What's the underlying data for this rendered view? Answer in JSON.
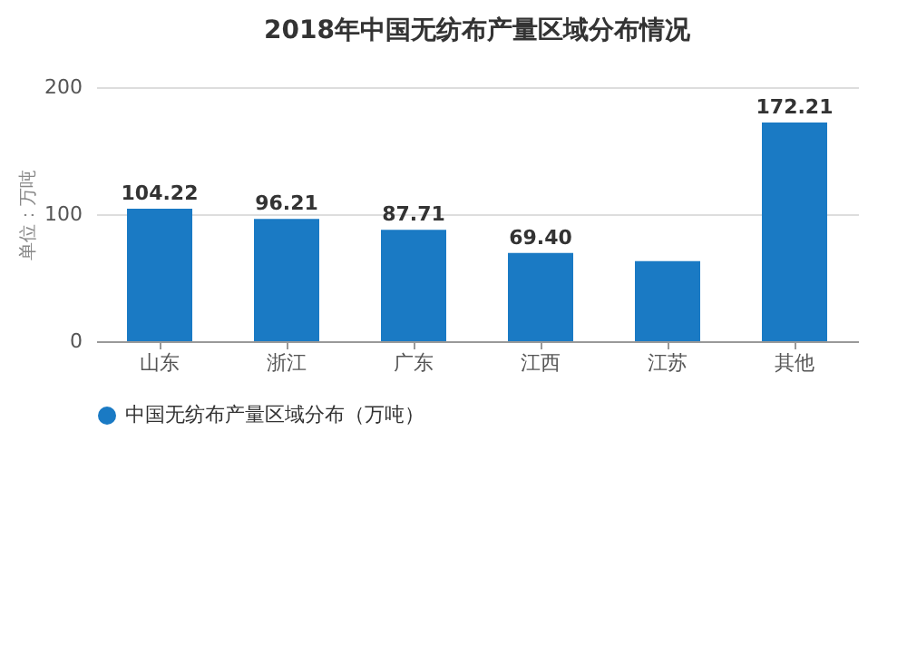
{
  "chart_data": {
    "type": "bar",
    "title": "2018年中国无纺布产量区域分布情况",
    "ylabel": "单位：万吨",
    "categories": [
      "山东",
      "浙江",
      "广东",
      "江西",
      "江苏",
      "其他"
    ],
    "series": [
      {
        "name": "中国无纺布产量区域分布（万吨）",
        "color": "#1a7ac4",
        "values": [
          104.22,
          96.21,
          87.71,
          69.4,
          63,
          172.21
        ],
        "value_labels": [
          "104.22",
          "96.21",
          "87.71",
          "69.40",
          null,
          "172.21"
        ]
      }
    ],
    "ylim": [
      0,
      200
    ],
    "yticks": [
      0,
      100,
      200
    ],
    "grid": "y",
    "legend": "bottom"
  }
}
